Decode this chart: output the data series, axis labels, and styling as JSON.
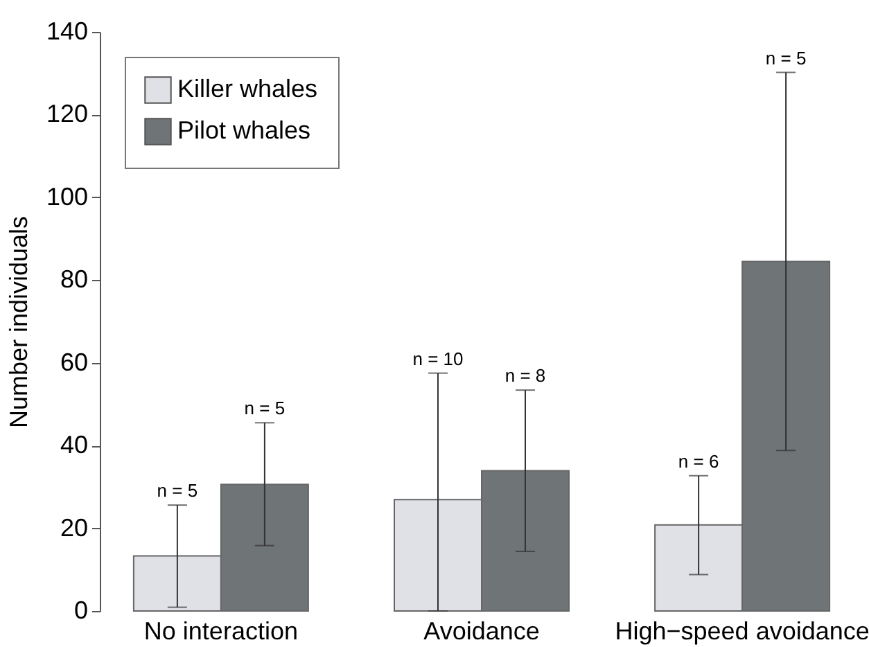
{
  "chart_data": {
    "type": "bar",
    "ylabel": "Number individuals",
    "categories": [
      "No interaction",
      "Avoidance",
      "High−speed avoidance"
    ],
    "series": [
      {
        "name": "Killer whales",
        "color": "#dfe1e7",
        "values": [
          13.3,
          26.9,
          20.8
        ],
        "errors": [
          [
            0.9,
            25.6
          ],
          [
            0,
            57.5
          ],
          [
            8.8,
            32.7
          ]
        ]
      },
      {
        "name": "Pilot whales",
        "color": "#6f7477",
        "values": [
          30.6,
          33.9,
          84.5
        ],
        "errors": [
          [
            15.8,
            45.5
          ],
          [
            14.4,
            53.4
          ],
          [
            38.8,
            130.2
          ]
        ]
      }
    ],
    "annotations": [
      "n = 5",
      "n = 5",
      "n = 10",
      "n = 8",
      "n = 6",
      "n = 5"
    ],
    "ylim": [
      0,
      140
    ],
    "yticks": [
      0,
      20,
      40,
      60,
      80,
      100,
      120,
      140
    ],
    "grid": false,
    "legend": "top left"
  }
}
